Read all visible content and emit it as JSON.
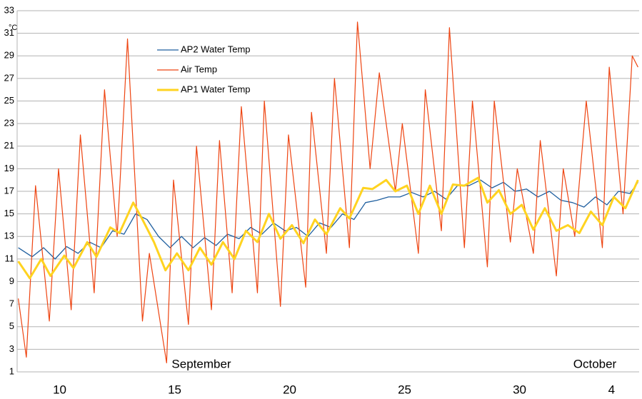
{
  "chart_data": {
    "type": "line",
    "y_label": "°C",
    "annotations": [
      "September",
      "October"
    ],
    "xlim": [
      8.15,
      35.2
    ],
    "xticks": [
      10,
      15,
      20,
      25,
      30,
      {
        "value": 34,
        "label": "4"
      }
    ],
    "ylim": [
      1,
      33
    ],
    "yticks": [
      1,
      3,
      5,
      7,
      9,
      11,
      13,
      15,
      17,
      19,
      21,
      23,
      25,
      27,
      29,
      31,
      33
    ],
    "grid": true,
    "legend": "top-left",
    "series": [
      {
        "name": "AP2 Water Temp",
        "color": "#1f5f9f",
        "width": 1.3,
        "x": [
          8.2,
          8.8,
          9.3,
          9.8,
          10.3,
          10.8,
          11.3,
          11.8,
          12.3,
          12.8,
          13.3,
          13.8,
          14.3,
          14.8,
          15.3,
          15.8,
          16.3,
          16.8,
          17.3,
          17.8,
          18.3,
          18.8,
          19.3,
          19.8,
          20.3,
          20.8,
          21.3,
          21.8,
          22.3,
          22.8,
          23.3,
          23.8,
          24.3,
          24.8,
          25.3,
          25.8,
          26.3,
          26.8,
          27.3,
          27.8,
          28.3,
          28.8,
          29.3,
          29.8,
          30.3,
          30.8,
          31.3,
          31.8,
          32.3,
          32.8,
          33.3,
          33.8,
          34.3,
          34.8,
          35.15
        ],
        "values": [
          12,
          11.2,
          12,
          11,
          12.1,
          11.5,
          12.5,
          12,
          13.5,
          13.2,
          15,
          14.5,
          13,
          12,
          13,
          12,
          12.9,
          12.2,
          13.2,
          12.8,
          13.8,
          13.2,
          14.2,
          13.5,
          13.8,
          13,
          14.2,
          13.8,
          15,
          14.5,
          16,
          16.2,
          16.5,
          16.5,
          16.9,
          16.5,
          17,
          16.3,
          17.5,
          17.5,
          18,
          17.3,
          17.8,
          17,
          17.2,
          16.5,
          17,
          16.2,
          16,
          15.6,
          16.5,
          15.8,
          17,
          16.8,
          17.8
        ]
      },
      {
        "name": "Air Temp",
        "color": "#ee4411",
        "width": 1.2,
        "x": [
          8.2,
          8.55,
          8.95,
          9.55,
          9.95,
          10.5,
          10.9,
          11.5,
          11.95,
          12.5,
          12.95,
          13.6,
          13.9,
          14.65,
          14.95,
          15.6,
          15.95,
          16.6,
          16.95,
          17.5,
          17.9,
          18.6,
          18.9,
          19.6,
          19.95,
          20.7,
          20.95,
          21.6,
          21.95,
          22.6,
          22.95,
          23.5,
          23.9,
          24.6,
          24.9,
          25.6,
          25.9,
          26.6,
          26.95,
          27.6,
          27.95,
          28.6,
          28.9,
          29.6,
          29.9,
          30.6,
          30.9,
          31.6,
          31.9,
          32.4,
          32.9,
          33.6,
          33.9,
          34.5,
          34.9,
          35.15
        ],
        "values": [
          7.5,
          2.3,
          17.5,
          5.5,
          19,
          6.5,
          22,
          8,
          26,
          13,
          30.5,
          5.5,
          11.5,
          1.8,
          18,
          5.2,
          21,
          6.5,
          21.5,
          8,
          24.5,
          8,
          25,
          6.8,
          22,
          8.5,
          24,
          11.5,
          27,
          12,
          32,
          19,
          27.5,
          17,
          23,
          11.5,
          26,
          13.5,
          31.5,
          12,
          25,
          10.3,
          25,
          12.5,
          19,
          11.5,
          21.5,
          9.5,
          19,
          13,
          25,
          12,
          28,
          15,
          29,
          28
        ]
      },
      {
        "name": "AP1 Water Temp",
        "color": "#ffd320",
        "width": 3,
        "x": [
          8.2,
          8.7,
          9.2,
          9.6,
          10.2,
          10.6,
          11.2,
          11.6,
          12.2,
          12.6,
          13.2,
          13.6,
          14.1,
          14.6,
          15.1,
          15.6,
          16.1,
          16.6,
          17.1,
          17.6,
          18.1,
          18.6,
          19.1,
          19.6,
          20.1,
          20.6,
          21.1,
          21.6,
          22.2,
          22.6,
          23.2,
          23.6,
          24.2,
          24.6,
          25.1,
          25.6,
          26.1,
          26.6,
          27.1,
          27.6,
          28.2,
          28.6,
          29.1,
          29.6,
          30.1,
          30.6,
          31.1,
          31.6,
          32.1,
          32.6,
          33.1,
          33.6,
          34.1,
          34.6,
          35.15
        ],
        "values": [
          10.8,
          9.3,
          11,
          9.5,
          11.3,
          10.2,
          12.5,
          11.2,
          13.8,
          13.3,
          16,
          14.5,
          12.5,
          10,
          11.5,
          10,
          12,
          10.5,
          12.5,
          11,
          13.5,
          12.5,
          15,
          12.8,
          14,
          12.4,
          14.5,
          13.2,
          15.5,
          14.6,
          17.3,
          17.2,
          18,
          17,
          17.5,
          15,
          17.5,
          15,
          17.6,
          17.5,
          18.2,
          16,
          17.1,
          15,
          15.8,
          13.6,
          15.5,
          13.5,
          14,
          13.3,
          15.2,
          14,
          16.5,
          15.5,
          18
        ]
      }
    ]
  }
}
